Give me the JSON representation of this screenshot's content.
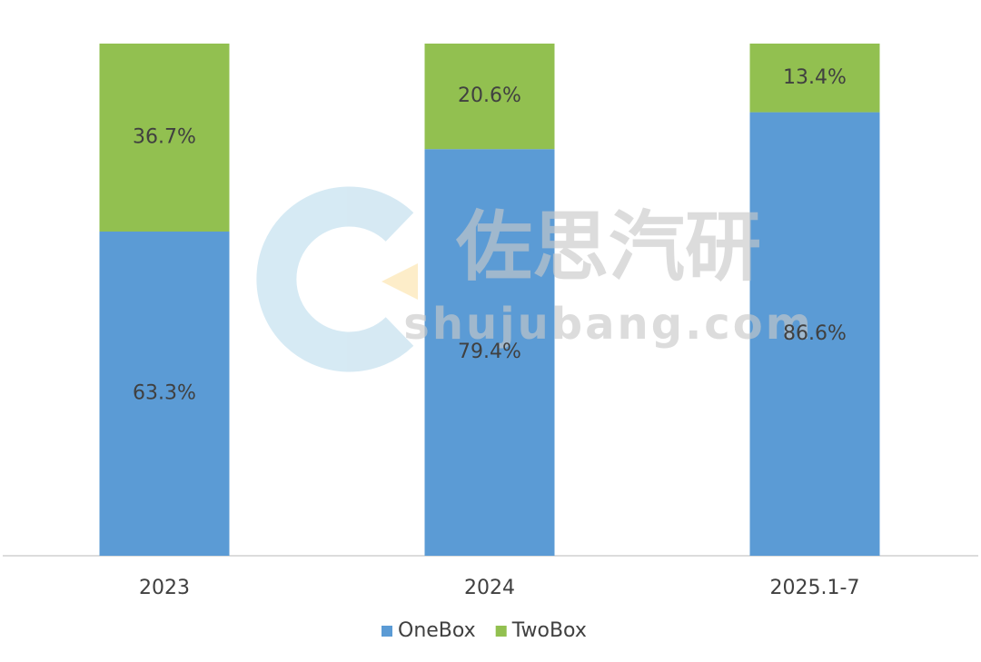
{
  "chart_data": {
    "type": "stacked-bar",
    "categories": [
      "2023",
      "2024",
      "2025.1-7"
    ],
    "series": [
      {
        "name": "OneBox",
        "color": "#5b9bd5",
        "values": [
          63.3,
          79.4,
          86.6
        ],
        "value_labels": [
          "63.3%",
          "79.4%",
          "86.6%"
        ]
      },
      {
        "name": "TwoBox",
        "color": "#92c050",
        "values": [
          36.7,
          20.6,
          13.4
        ],
        "value_labels": [
          "36.7%",
          "20.6%",
          "13.4%"
        ]
      }
    ],
    "ylim": [
      0,
      100
    ],
    "legend": "bottom",
    "watermark": {
      "title": "佐思汽研",
      "url": "shujubang.com"
    }
  }
}
